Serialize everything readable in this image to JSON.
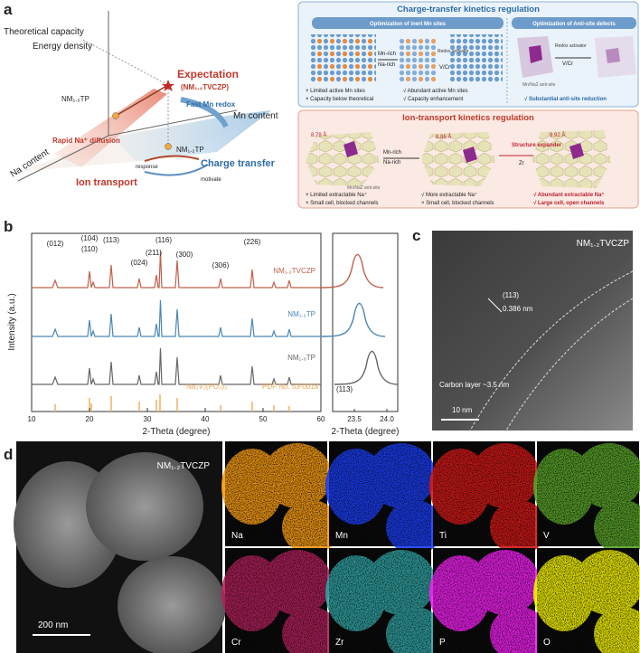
{
  "panel_a": {
    "label": "a",
    "schematic": {
      "y_axis_1": "Theoretical capacity",
      "y_axis_2": "Energy density",
      "expectation": "Expectation",
      "expectation_sample": "(NM₁.₂TVCZP)",
      "sample_1": "NM₁.₀TP",
      "fast_mn": "Fast Mn redox",
      "mn_axis": "Mn content",
      "rapid_na": "Rapid Na⁺ diffusion",
      "sample_2": "NM₁.₂TP",
      "na_axis": "Na content",
      "response": "response",
      "charge_transfer": "Charge transfer",
      "ion_transport": "Ion transport",
      "motivate": "motivate"
    },
    "charge_box": {
      "title": "Charge-transfer kinetics regulation",
      "left_header": "Optimization of inert Mn sites",
      "right_header": "Optimization of Anti-site defects",
      "mn_rich": "Mn-rich",
      "na_rich": "Na-rich",
      "activator_1": "Redox activator",
      "dopant_1": "V/Cr",
      "activator_2": "Redox activator",
      "dopant_2": "V/Cr",
      "antisite": "Mn/Na2 anti-site",
      "bullets": [
        "× Limited active Mn sites",
        "× Capacity below theoretical",
        "√ Abundant active Mn sites",
        "√ Capacity enhancement",
        "√ Substantial anti-site reduction"
      ]
    },
    "ion_box": {
      "title": "Ion-transport kinetics regulation",
      "cell_1": "8.79 Å",
      "cell_2": "8.86 Å",
      "cell_3": "8.92 Å",
      "mn_rich": "Mn-rich",
      "na_rich": "Na-rich",
      "expander": "Structure expander",
      "dopant": "Zr",
      "antisite": "Mn/Na2 anti-site",
      "bullets": [
        "× Limited extractable Na⁺",
        "× Small cell, blocked channels",
        "√ More extractable Na⁺",
        "× Small cell, blocked channels",
        "√ Abundant extractable Na⁺",
        "√ Large cell, open channels"
      ]
    }
  },
  "panel_b": {
    "label": "b",
    "y_label": "Intensity (a.u.)",
    "x_label": "2-Theta (degree)",
    "xticks": [
      10,
      20,
      30,
      40,
      50,
      60
    ],
    "peaks": [
      "(012)",
      "(104)",
      "(110)",
      "(113)",
      "(024)",
      "(211)",
      "(116)",
      "(300)",
      "(306)",
      "(226)"
    ],
    "samples": [
      "NM₁.₂TVCZP",
      "NM₁.₂TP",
      "NM₁.₀TP"
    ],
    "reference": "Na₃V₂(PO₄)₃",
    "pdf": "PDF No. 53-0018",
    "inset": {
      "xticks": [
        "23.5",
        "24.0"
      ],
      "peak": "(113)",
      "x_label": "2-Theta (degree)"
    }
  },
  "panel_c": {
    "label": "c",
    "sample": "NM₁.₂TVCZP",
    "plane": "(113)",
    "spacing": "0.386 nm",
    "carbon": "Carbon layer ~3.5 nm",
    "scale": "10 nm"
  },
  "panel_d": {
    "label": "d",
    "sample": "NM₁.₂TVCZP",
    "scale": "200 nm",
    "maps": [
      {
        "element": "Na",
        "color": "#f29a12"
      },
      {
        "element": "Mn",
        "color": "#1a3cf0"
      },
      {
        "element": "Ti",
        "color": "#d01818"
      },
      {
        "element": "V",
        "color": "#58a028"
      },
      {
        "element": "Cr",
        "color": "#b0205a"
      },
      {
        "element": "Zr",
        "color": "#30a0a0"
      },
      {
        "element": "P",
        "color": "#f020f0"
      },
      {
        "element": "O",
        "color": "#f0f000"
      }
    ]
  }
}
